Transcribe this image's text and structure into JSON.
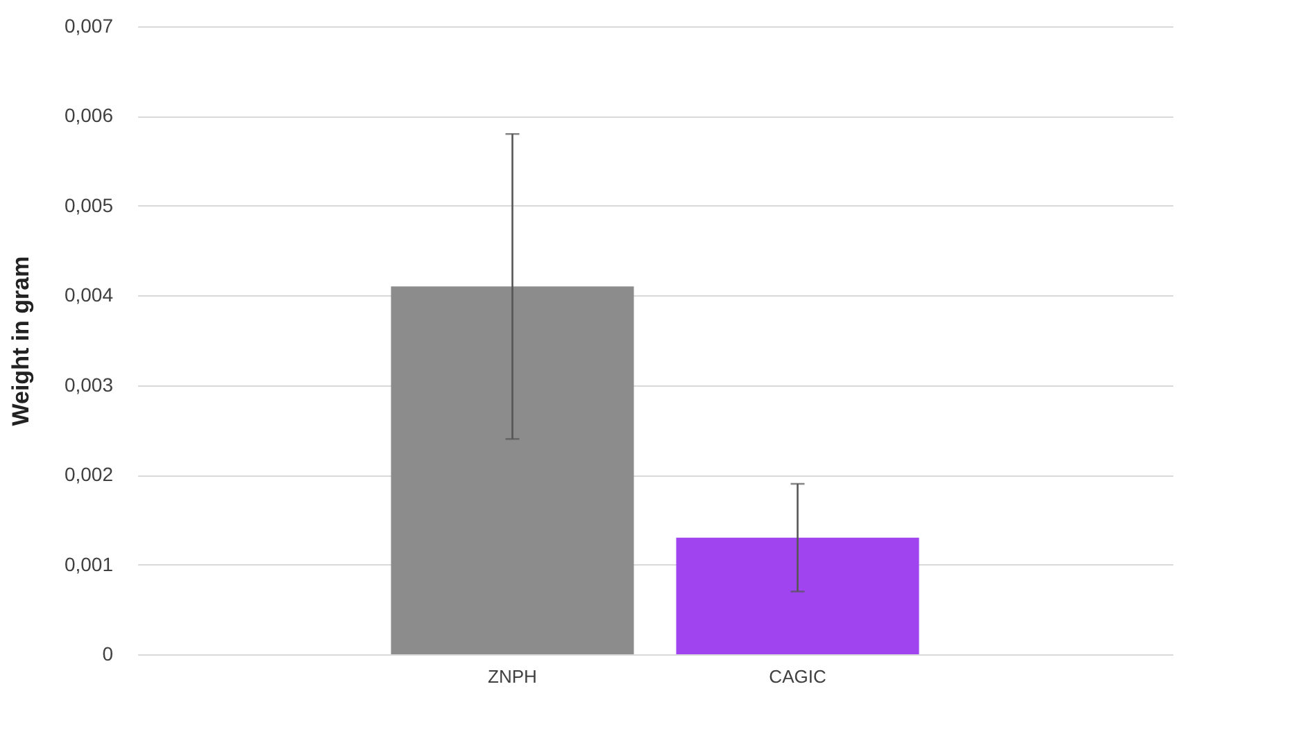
{
  "chart_data": {
    "type": "bar",
    "ylabel": "Weight in gram",
    "categories": [
      "ZNPH",
      "CAGIC"
    ],
    "values": [
      0.0041,
      0.0013
    ],
    "colors": [
      "#8c8c8c",
      "#a044f0"
    ],
    "errors": [
      0.0017,
      0.0006
    ],
    "ylim": [
      0,
      0.007
    ],
    "yticks": [
      0,
      {
        "value": 0.001,
        "label": "0,001"
      },
      {
        "value": 0.002,
        "label": "0,002"
      },
      {
        "value": 0.003,
        "label": "0,003"
      },
      {
        "value": 0.004,
        "label": "0,004"
      },
      {
        "value": 0.005,
        "label": "0,005"
      },
      {
        "value": 0.006,
        "label": "0,006"
      },
      {
        "value": 0.007,
        "label": "0,007"
      }
    ],
    "grid": "y"
  }
}
